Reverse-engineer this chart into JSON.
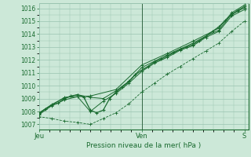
{
  "bg_color": "#cce8d8",
  "grid_color": "#99c4b0",
  "line_color": "#1a6b30",
  "ylabel_vals": [
    1007,
    1008,
    1009,
    1010,
    1011,
    1012,
    1013,
    1014,
    1015,
    1016
  ],
  "xlabel": "Pression niveau de la mer( hPa )",
  "xtick_labels": [
    "Jeu",
    "Ven",
    "S"
  ],
  "xtick_positions": [
    0.0,
    0.5,
    1.0
  ],
  "ylim": [
    1006.6,
    1016.4
  ],
  "xlim": [
    0.0,
    1.02
  ],
  "vline_x": 0.5,
  "series": {
    "main": [
      [
        0.0,
        1007.8
      ],
      [
        0.031,
        1008.2
      ],
      [
        0.063,
        1008.5
      ],
      [
        0.094,
        1008.65
      ],
      [
        0.125,
        1009.0
      ],
      [
        0.156,
        1009.2
      ],
      [
        0.188,
        1009.3
      ],
      [
        0.219,
        1009.1
      ],
      [
        0.25,
        1008.1
      ],
      [
        0.281,
        1007.9
      ],
      [
        0.313,
        1008.1
      ],
      [
        0.344,
        1009.0
      ],
      [
        0.375,
        1009.5
      ],
      [
        0.406,
        1009.9
      ],
      [
        0.438,
        1010.3
      ],
      [
        0.469,
        1010.85
      ],
      [
        0.5,
        1011.2
      ],
      [
        0.531,
        1011.5
      ],
      [
        0.563,
        1011.85
      ],
      [
        0.594,
        1012.05
      ],
      [
        0.625,
        1012.3
      ],
      [
        0.656,
        1012.55
      ],
      [
        0.688,
        1012.82
      ],
      [
        0.719,
        1013.0
      ],
      [
        0.75,
        1013.2
      ],
      [
        0.781,
        1013.5
      ],
      [
        0.813,
        1013.82
      ],
      [
        0.844,
        1014.2
      ],
      [
        0.875,
        1014.55
      ],
      [
        0.906,
        1015.05
      ],
      [
        0.938,
        1015.5
      ],
      [
        0.969,
        1015.8
      ],
      [
        1.0,
        1016.05
      ]
    ],
    "upper1": [
      [
        0.0,
        1007.85
      ],
      [
        0.063,
        1008.55
      ],
      [
        0.125,
        1009.05
      ],
      [
        0.188,
        1009.3
      ],
      [
        0.25,
        1009.1
      ],
      [
        0.313,
        1009.0
      ],
      [
        0.375,
        1009.6
      ],
      [
        0.438,
        1010.35
      ],
      [
        0.5,
        1011.4
      ],
      [
        0.563,
        1011.9
      ],
      [
        0.625,
        1012.4
      ],
      [
        0.688,
        1012.85
      ],
      [
        0.75,
        1013.3
      ],
      [
        0.813,
        1013.85
      ],
      [
        0.875,
        1014.3
      ],
      [
        0.938,
        1015.55
      ],
      [
        0.969,
        1015.85
      ],
      [
        1.0,
        1016.15
      ]
    ],
    "upper2": [
      [
        0.0,
        1007.9
      ],
      [
        0.125,
        1009.1
      ],
      [
        0.25,
        1009.2
      ],
      [
        0.375,
        1009.7
      ],
      [
        0.5,
        1011.6
      ],
      [
        0.625,
        1012.5
      ],
      [
        0.75,
        1013.45
      ],
      [
        0.875,
        1014.45
      ],
      [
        0.938,
        1015.65
      ],
      [
        1.0,
        1016.25
      ]
    ],
    "lower1": [
      [
        0.0,
        1007.75
      ],
      [
        0.063,
        1008.45
      ],
      [
        0.125,
        1008.9
      ],
      [
        0.188,
        1009.15
      ],
      [
        0.25,
        1008.0
      ],
      [
        0.313,
        1008.8
      ],
      [
        0.375,
        1009.4
      ],
      [
        0.438,
        1010.2
      ],
      [
        0.5,
        1011.1
      ],
      [
        0.563,
        1011.75
      ],
      [
        0.625,
        1012.2
      ],
      [
        0.688,
        1012.75
      ],
      [
        0.75,
        1013.1
      ],
      [
        0.813,
        1013.75
      ],
      [
        0.875,
        1014.2
      ],
      [
        0.938,
        1015.4
      ],
      [
        1.0,
        1015.9
      ]
    ],
    "dashed": [
      [
        0.0,
        1007.6
      ],
      [
        0.063,
        1007.45
      ],
      [
        0.125,
        1007.25
      ],
      [
        0.188,
        1007.15
      ],
      [
        0.25,
        1007.0
      ],
      [
        0.313,
        1007.45
      ],
      [
        0.375,
        1007.9
      ],
      [
        0.438,
        1008.6
      ],
      [
        0.5,
        1009.5
      ],
      [
        0.563,
        1010.2
      ],
      [
        0.625,
        1010.9
      ],
      [
        0.688,
        1011.5
      ],
      [
        0.75,
        1012.1
      ],
      [
        0.813,
        1012.7
      ],
      [
        0.875,
        1013.3
      ],
      [
        0.938,
        1014.2
      ],
      [
        1.0,
        1015.0
      ]
    ]
  }
}
